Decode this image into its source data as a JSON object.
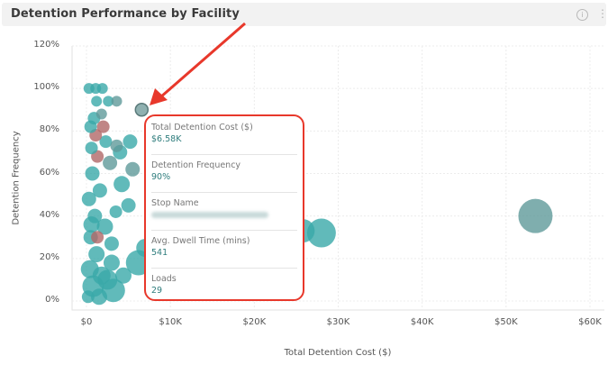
{
  "header": {
    "title": "Detention Performance by Facility",
    "info_icon": "info-icon",
    "more_icon": "more-vertical-icon"
  },
  "chart_data": {
    "type": "scatter",
    "title": "Detention Performance by Facility",
    "xlabel": "Total Detention Cost ($)",
    "ylabel": "Detention Frequency",
    "xlim": [
      0,
      60000
    ],
    "ylim": [
      0,
      1.2
    ],
    "x_ticks": [
      "$0",
      "$10K",
      "$20K",
      "$30K",
      "$40K",
      "$50K",
      "$60K"
    ],
    "y_ticks": [
      "0%",
      "20%",
      "40%",
      "60%",
      "80%",
      "100%",
      "120%"
    ],
    "grid": true,
    "bubble_size_encodes": "Loads",
    "colors": {
      "primary": "#3aa9a9",
      "secondary": "#5f8f8f",
      "highlight": "#b06868"
    },
    "points": [
      {
        "x": 6580,
        "y": 0.9,
        "r": 7,
        "c": "#8fb0b0",
        "highlighted": true
      },
      {
        "x": 53500,
        "y": 0.4,
        "r": 19,
        "c": "#5f9a9a"
      },
      {
        "x": 28000,
        "y": 0.32,
        "r": 16,
        "c": "#3aa9a9"
      },
      {
        "x": 25800,
        "y": 0.33,
        "r": 13,
        "c": "#3aa9a9"
      },
      {
        "x": 6200,
        "y": 0.18,
        "r": 14,
        "c": "#3aa9a9"
      },
      {
        "x": 7000,
        "y": 0.25,
        "r": 10,
        "c": "#3aa9a9"
      },
      {
        "x": 3200,
        "y": 0.05,
        "r": 13,
        "c": "#3aa9a9"
      },
      {
        "x": 2500,
        "y": 0.1,
        "r": 11,
        "c": "#3aa9a9"
      },
      {
        "x": 1500,
        "y": 0.02,
        "r": 9,
        "c": "#3aa9a9"
      },
      {
        "x": 800,
        "y": 0.07,
        "r": 12,
        "c": "#3aa9a9"
      },
      {
        "x": 400,
        "y": 0.15,
        "r": 10,
        "c": "#3aa9a9"
      },
      {
        "x": 1200,
        "y": 0.22,
        "r": 9,
        "c": "#3aa9a9"
      },
      {
        "x": 3000,
        "y": 0.27,
        "r": 8,
        "c": "#3aa9a9"
      },
      {
        "x": 500,
        "y": 0.3,
        "r": 8,
        "c": "#3aa9a9"
      },
      {
        "x": 2200,
        "y": 0.35,
        "r": 9,
        "c": "#3aa9a9"
      },
      {
        "x": 1000,
        "y": 0.4,
        "r": 8,
        "c": "#3aa9a9"
      },
      {
        "x": 3500,
        "y": 0.42,
        "r": 7,
        "c": "#3aa9a9"
      },
      {
        "x": 5000,
        "y": 0.45,
        "r": 8,
        "c": "#3aa9a9"
      },
      {
        "x": 300,
        "y": 0.48,
        "r": 8,
        "c": "#3aa9a9"
      },
      {
        "x": 1600,
        "y": 0.52,
        "r": 8,
        "c": "#3aa9a9"
      },
      {
        "x": 4200,
        "y": 0.55,
        "r": 9,
        "c": "#3aa9a9"
      },
      {
        "x": 5500,
        "y": 0.62,
        "r": 8,
        "c": "#5f9a9a"
      },
      {
        "x": 700,
        "y": 0.6,
        "r": 8,
        "c": "#3aa9a9"
      },
      {
        "x": 2800,
        "y": 0.65,
        "r": 8,
        "c": "#5f9a9a"
      },
      {
        "x": 1300,
        "y": 0.68,
        "r": 7,
        "c": "#b06868"
      },
      {
        "x": 4000,
        "y": 0.7,
        "r": 8,
        "c": "#3aa9a9"
      },
      {
        "x": 600,
        "y": 0.72,
        "r": 7,
        "c": "#3aa9a9"
      },
      {
        "x": 2300,
        "y": 0.75,
        "r": 7,
        "c": "#3aa9a9"
      },
      {
        "x": 3600,
        "y": 0.73,
        "r": 7,
        "c": "#5f9a9a"
      },
      {
        "x": 5200,
        "y": 0.75,
        "r": 8,
        "c": "#3aa9a9"
      },
      {
        "x": 1100,
        "y": 0.78,
        "r": 7,
        "c": "#b06868"
      },
      {
        "x": 500,
        "y": 0.82,
        "r": 7,
        "c": "#3aa9a9"
      },
      {
        "x": 2000,
        "y": 0.82,
        "r": 7,
        "c": "#b06868"
      },
      {
        "x": 900,
        "y": 0.86,
        "r": 7,
        "c": "#3aa9a9"
      },
      {
        "x": 1800,
        "y": 0.88,
        "r": 6,
        "c": "#5f9a9a"
      },
      {
        "x": 1200,
        "y": 0.94,
        "r": 6,
        "c": "#3aa9a9"
      },
      {
        "x": 2600,
        "y": 0.94,
        "r": 6,
        "c": "#3aa9a9"
      },
      {
        "x": 3600,
        "y": 0.94,
        "r": 6,
        "c": "#5f9a9a"
      },
      {
        "x": 300,
        "y": 1.0,
        "r": 6,
        "c": "#3aa9a9"
      },
      {
        "x": 1100,
        "y": 1.0,
        "r": 6,
        "c": "#3aa9a9"
      },
      {
        "x": 1900,
        "y": 1.0,
        "r": 6,
        "c": "#3aa9a9"
      },
      {
        "x": 600,
        "y": 0.36,
        "r": 9,
        "c": "#3aa9a9"
      },
      {
        "x": 1800,
        "y": 0.12,
        "r": 10,
        "c": "#3aa9a9"
      },
      {
        "x": 4400,
        "y": 0.12,
        "r": 9,
        "c": "#3aa9a9"
      },
      {
        "x": 3000,
        "y": 0.18,
        "r": 9,
        "c": "#3aa9a9"
      },
      {
        "x": 1300,
        "y": 0.3,
        "r": 7,
        "c": "#b06868"
      },
      {
        "x": 200,
        "y": 0.02,
        "r": 7,
        "c": "#3aa9a9"
      }
    ]
  },
  "tooltip": {
    "rows": [
      {
        "label": "Total Detention Cost ($)",
        "value": "$6.58K"
      },
      {
        "label": "Detention Frequency",
        "value": "90%"
      },
      {
        "label": "Stop Name",
        "value": "[blurred]"
      },
      {
        "label": "Avg. Dwell Time (mins)",
        "value": "541"
      },
      {
        "label": "Loads",
        "value": "29"
      }
    ]
  },
  "annotation": {
    "type": "red-arrow",
    "color": "#e8382b"
  }
}
